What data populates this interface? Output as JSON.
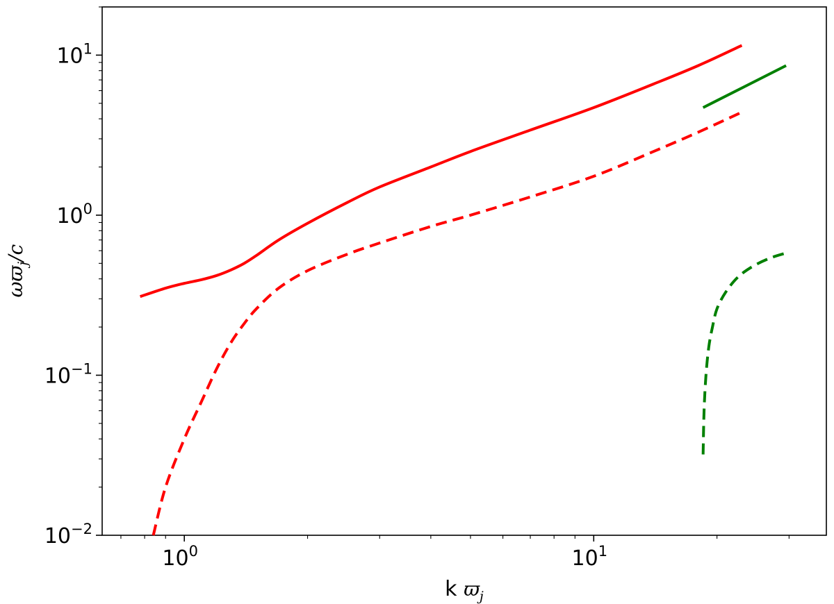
{
  "chart_data": {
    "type": "line",
    "xscale": "log",
    "yscale": "log",
    "xlim": [
      0.63,
      37
    ],
    "ylim": [
      0.01,
      20
    ],
    "grid": false,
    "x_tick_labels": [
      {
        "value": 1,
        "base": "10",
        "exp": "0"
      },
      {
        "value": 10,
        "base": "10",
        "exp": "1"
      }
    ],
    "y_tick_labels": [
      {
        "value": 0.01,
        "base": "10",
        "exp": "−2"
      },
      {
        "value": 0.1,
        "base": "10",
        "exp": "−1"
      },
      {
        "value": 1,
        "base": "10",
        "exp": "0"
      },
      {
        "value": 10,
        "base": "10",
        "exp": "1"
      }
    ],
    "xlabel": {
      "prefix": "k ",
      "symbol": "ϖ",
      "sub": "j"
    },
    "ylabel": {
      "symbol": "ωϖ",
      "sub": "j",
      "suffix": "/c"
    },
    "series": [
      {
        "color": "#ff0000",
        "dash": "solid",
        "x": [
          0.78,
          0.9,
          1.0,
          1.1,
          1.2,
          1.3,
          1.4,
          1.5,
          1.7,
          2.0,
          2.5,
          3.0,
          4.0,
          5.0,
          7.0,
          10.0,
          14.0,
          18.0,
          23.0
        ],
        "y": [
          0.31,
          0.35,
          0.375,
          0.395,
          0.42,
          0.455,
          0.5,
          0.56,
          0.7,
          0.89,
          1.2,
          1.5,
          2.0,
          2.5,
          3.4,
          4.7,
          6.6,
          8.6,
          11.5
        ]
      },
      {
        "color": "#ff0000",
        "dash": "dashed",
        "x": [
          0.84,
          0.9,
          1.0,
          1.1,
          1.2,
          1.3,
          1.4,
          1.5,
          1.7,
          2.0,
          2.5,
          3.0,
          4.0,
          5.0,
          7.0,
          10.0,
          14.0,
          18.0,
          23.0
        ],
        "y": [
          0.01,
          0.02,
          0.04,
          0.068,
          0.11,
          0.16,
          0.21,
          0.26,
          0.35,
          0.45,
          0.57,
          0.67,
          0.85,
          1.0,
          1.3,
          1.75,
          2.5,
          3.3,
          4.4
        ]
      },
      {
        "color": "#008000",
        "dash": "solid",
        "x": [
          18.5,
          29.5
        ],
        "y": [
          4.7,
          8.6
        ]
      },
      {
        "color": "#008000",
        "dash": "dashed",
        "x": [
          18.5,
          18.6,
          18.8,
          19.1,
          19.5,
          20.0,
          21.0,
          22.5,
          24.5,
          27.0,
          29.5
        ],
        "y": [
          0.032,
          0.06,
          0.1,
          0.15,
          0.2,
          0.26,
          0.33,
          0.41,
          0.48,
          0.54,
          0.58
        ]
      }
    ]
  }
}
